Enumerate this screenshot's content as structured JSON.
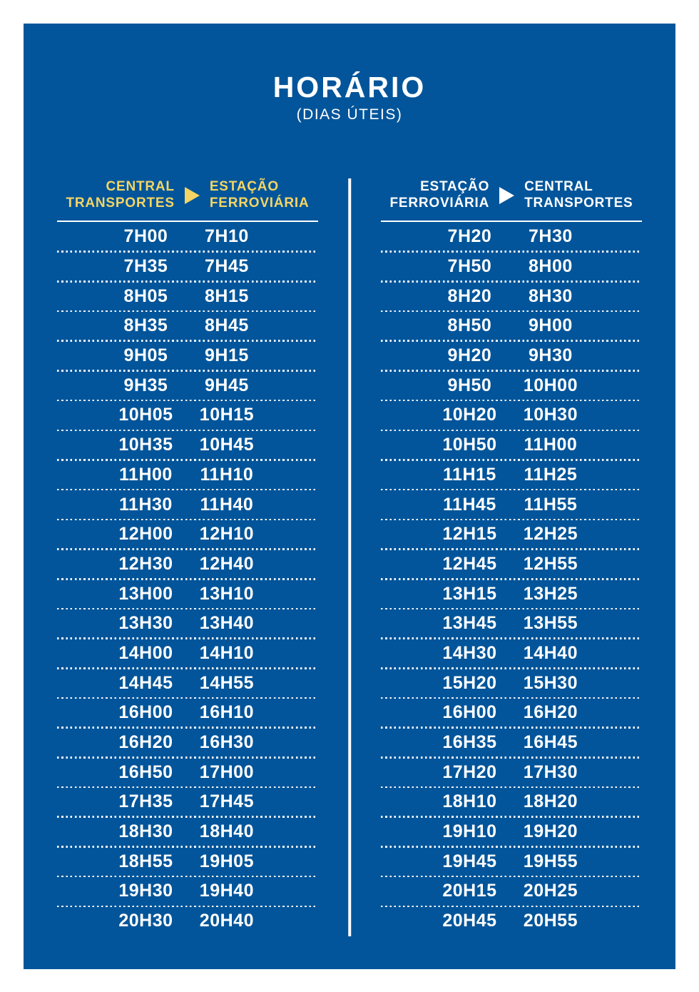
{
  "title": "HORÁRIO",
  "subtitle": "(DIAS ÚTEIS)",
  "colors": {
    "panel_blue": "#02559a",
    "accent_yellow": "#f5d564",
    "text_white": "#ffffff"
  },
  "tables": [
    {
      "name": "central-transportes-to-estacao-ferroviaria",
      "from_line1": "CENTRAL",
      "from_line2": "TRANSPORTES",
      "to_line1": "ESTAÇÃO",
      "to_line2": "FERROVIÁRIA",
      "arrow_icon": "right-triangle-arrow",
      "header_style": "yellow",
      "rows": [
        [
          "7H00",
          "7H10"
        ],
        [
          "7H35",
          "7H45"
        ],
        [
          "8H05",
          "8H15"
        ],
        [
          "8H35",
          "8H45"
        ],
        [
          "9H05",
          "9H15"
        ],
        [
          "9H35",
          "9H45"
        ],
        [
          "10H05",
          "10H15"
        ],
        [
          "10H35",
          "10H45"
        ],
        [
          "11H00",
          "11H10"
        ],
        [
          "11H30",
          "11H40"
        ],
        [
          "12H00",
          "12H10"
        ],
        [
          "12H30",
          "12H40"
        ],
        [
          "13H00",
          "13H10"
        ],
        [
          "13H30",
          "13H40"
        ],
        [
          "14H00",
          "14H10"
        ],
        [
          "14H45",
          "14H55"
        ],
        [
          "16H00",
          "16H10"
        ],
        [
          "16H20",
          "16H30"
        ],
        [
          "16H50",
          "17H00"
        ],
        [
          "17H35",
          "17H45"
        ],
        [
          "18H30",
          "18H40"
        ],
        [
          "18H55",
          "19H05"
        ],
        [
          "19H30",
          "19H40"
        ],
        [
          "20H30",
          "20H40"
        ]
      ]
    },
    {
      "name": "estacao-ferroviaria-to-central-transportes",
      "from_line1": "ESTAÇÃO",
      "from_line2": "FERROVIÁRIA",
      "to_line1": "CENTRAL",
      "to_line2": "TRANSPORTES",
      "arrow_icon": "right-triangle-arrow",
      "header_style": "white",
      "rows": [
        [
          "7H20",
          "7H30"
        ],
        [
          "7H50",
          "8H00"
        ],
        [
          "8H20",
          "8H30"
        ],
        [
          "8H50",
          "9H00"
        ],
        [
          "9H20",
          "9H30"
        ],
        [
          "9H50",
          "10H00"
        ],
        [
          "10H20",
          "10H30"
        ],
        [
          "10H50",
          "11H00"
        ],
        [
          "11H15",
          "11H25"
        ],
        [
          "11H45",
          "11H55"
        ],
        [
          "12H15",
          "12H25"
        ],
        [
          "12H45",
          "12H55"
        ],
        [
          "13H15",
          "13H25"
        ],
        [
          "13H45",
          "13H55"
        ],
        [
          "14H30",
          "14H40"
        ],
        [
          "15H20",
          "15H30"
        ],
        [
          "16H00",
          "16H20"
        ],
        [
          "16H35",
          "16H45"
        ],
        [
          "17H20",
          "17H30"
        ],
        [
          "18H10",
          "18H20"
        ],
        [
          "19H10",
          "19H20"
        ],
        [
          "19H45",
          "19H55"
        ],
        [
          "20H15",
          "20H25"
        ],
        [
          "20H45",
          "20H55"
        ]
      ]
    }
  ]
}
